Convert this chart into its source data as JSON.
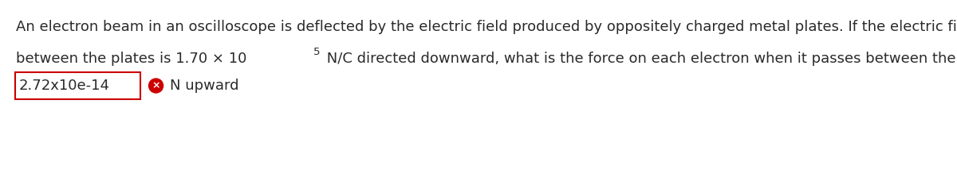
{
  "background_color": "#ffffff",
  "question_line1": "An electron beam in an oscilloscope is deflected by the electric field produced by oppositely charged metal plates. If the electric field",
  "question_line2a": "between the plates is 1.70 × 10",
  "question_line2_sup": "5",
  "question_line2b": " N/C directed downward, what is the force on each electron when it passes between the plates?",
  "answer_value": "2.72x10e-14",
  "answer_suffix": "N upward",
  "answer_box_color": "#cc0000",
  "answer_text_color": "#2a2a2a",
  "question_text_color": "#2a2a2a",
  "icon_color": "#cc0000",
  "font_size_question": 13.0,
  "font_size_answer": 13.0,
  "font_size_sup": 9.5
}
